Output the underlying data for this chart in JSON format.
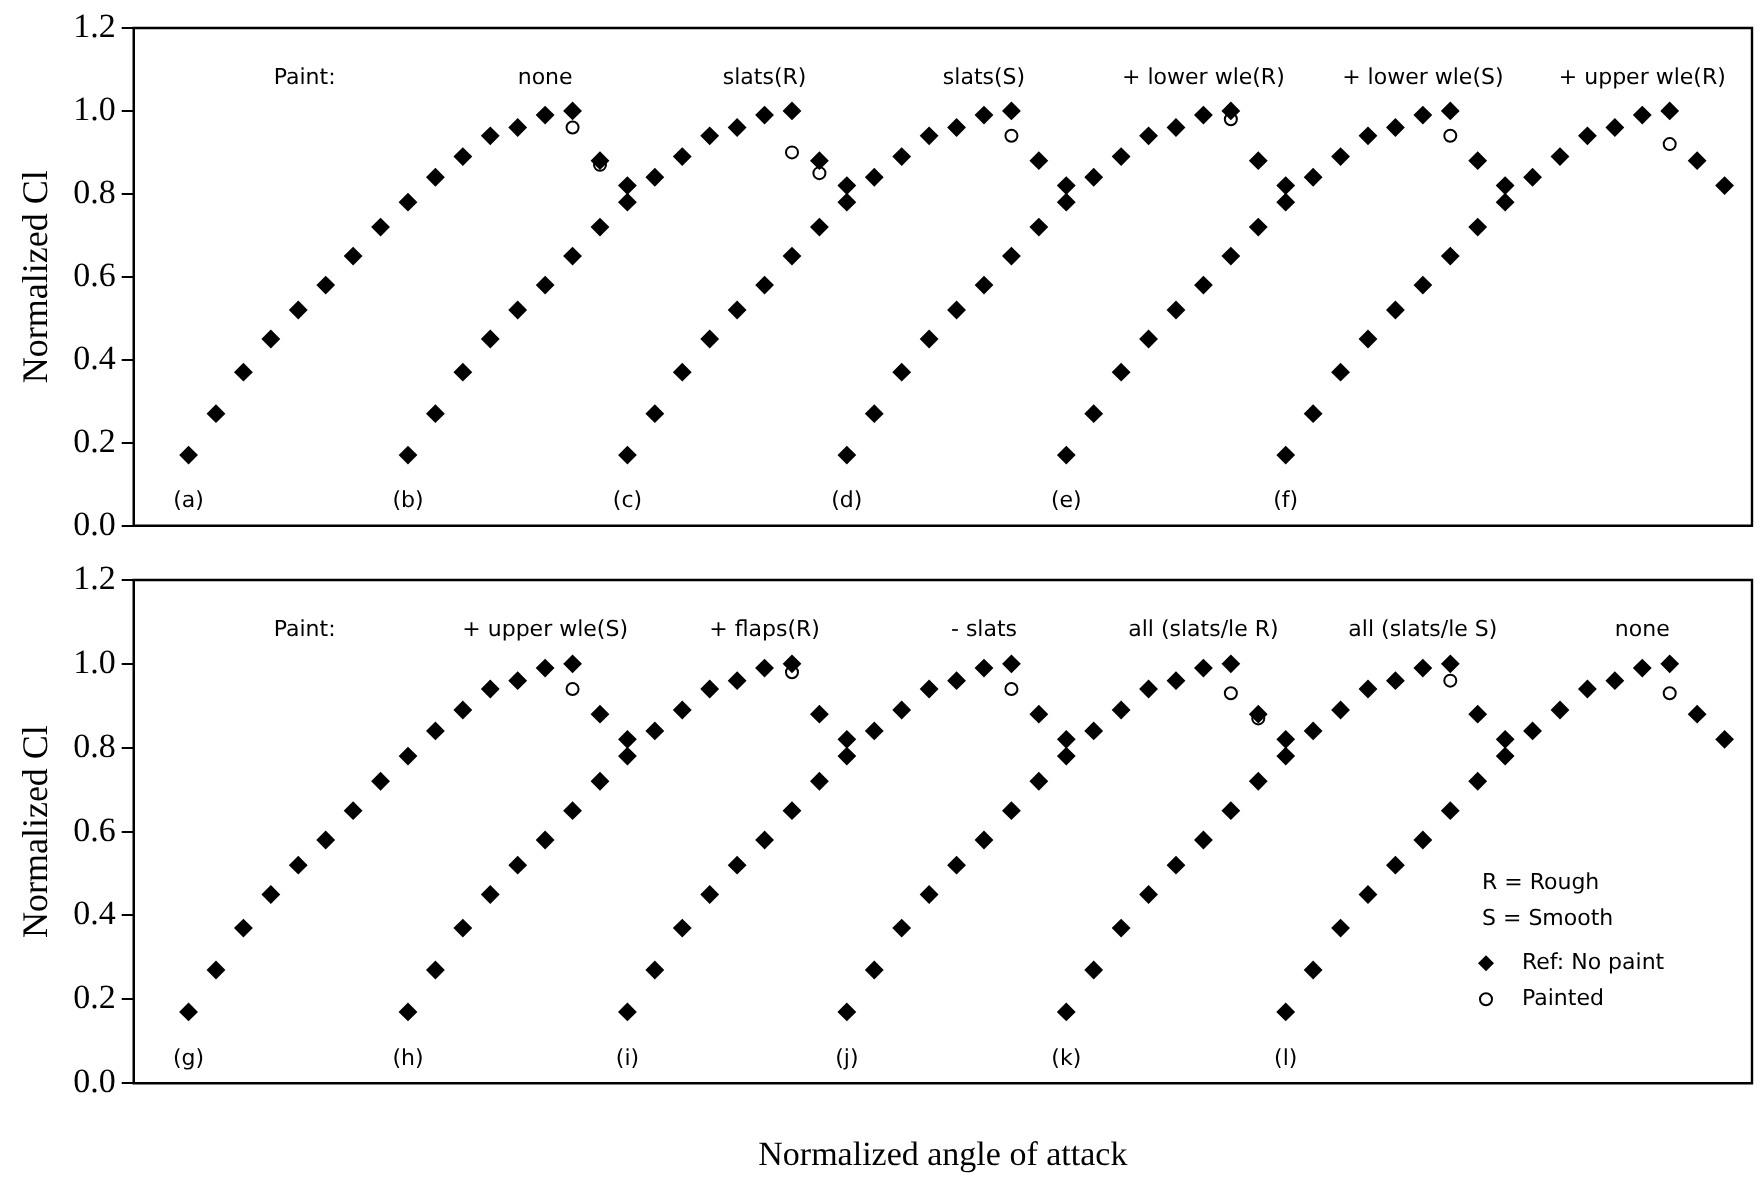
{
  "chart_data": [
    {
      "type": "scatter",
      "ylabel": "Normalized Cl",
      "ylim": [
        0,
        1.2
      ],
      "yticks": [
        {
          "value": 0,
          "label": "0.0"
        },
        {
          "value": 0.2,
          "label": "0.2"
        },
        {
          "value": 0.4,
          "label": "0.4"
        },
        {
          "value": 0.6,
          "label": "0.6"
        },
        {
          "value": 0.8,
          "label": "0.8"
        },
        {
          "value": 1,
          "label": "1.0"
        },
        {
          "value": 1.2,
          "label": "1.2"
        }
      ],
      "grid": false,
      "legend": false,
      "tick_labels": "y",
      "annotations": [
        "Paint:",
        "none",
        "slats(R)",
        "slats(S)",
        "+ lower wle(R)",
        "+ lower wle(S)",
        "+ upper wle(R)",
        "(a)",
        "(b)",
        "(c)",
        "(d)",
        "(e)",
        "(f)"
      ],
      "categories": [
        null,
        null,
        null,
        null,
        null,
        null,
        null,
        null,
        null,
        null,
        null,
        null,
        null,
        null,
        null,
        null,
        null,
        null,
        null,
        null,
        null,
        null,
        null,
        null,
        null,
        null,
        null,
        null,
        null,
        null,
        null,
        null,
        null,
        null,
        null,
        null,
        null,
        null,
        null,
        null,
        null,
        null,
        null,
        null,
        null,
        null,
        null,
        null,
        null,
        null,
        null,
        null,
        null,
        null,
        null,
        null,
        null,
        null,
        null,
        null
      ],
      "series": [
        {
          "color": "#000000",
          "marker": "diamond",
          "values": [
            null,
            null,
            0.17,
            0.27,
            0.37,
            0.45,
            0.52,
            0.58,
            0.65,
            0.72,
            0.78,
            0.84,
            0.89,
            0.94,
            0.96,
            0.99,
            1.0,
            0.88,
            0.82,
            null,
            null,
            null,
            null,
            null,
            null,
            null,
            null,
            null,
            null,
            null,
            null,
            null,
            null,
            null,
            null,
            null,
            null,
            null,
            null,
            null,
            null,
            null,
            null,
            null,
            null,
            null,
            null,
            null,
            null,
            null,
            null,
            null,
            null,
            null,
            null,
            null,
            null,
            null,
            null,
            null
          ]
        },
        {
          "color": "#000000",
          "marker": "circle",
          "values": [
            null,
            null,
            null,
            null,
            null,
            null,
            null,
            null,
            null,
            null,
            null,
            null,
            null,
            null,
            null,
            null,
            0.96,
            0.87,
            null,
            null,
            null,
            null,
            null,
            null,
            null,
            null,
            null,
            null,
            null,
            null,
            null,
            null,
            null,
            null,
            null,
            null,
            null,
            null,
            null,
            null,
            null,
            null,
            null,
            null,
            null,
            null,
            null,
            null,
            null,
            null,
            null,
            null,
            null,
            null,
            null,
            null,
            null,
            null,
            null,
            null
          ]
        },
        {
          "color": "#000000",
          "marker": "diamond",
          "values": [
            null,
            null,
            null,
            null,
            null,
            null,
            null,
            null,
            null,
            null,
            0.17,
            0.27,
            0.37,
            0.45,
            0.52,
            0.58,
            0.65,
            0.72,
            0.78,
            0.84,
            0.89,
            0.94,
            0.96,
            0.99,
            1.0,
            0.88,
            0.82,
            null,
            null,
            null,
            null,
            null,
            null,
            null,
            null,
            null,
            null,
            null,
            null,
            null,
            null,
            null,
            null,
            null,
            null,
            null,
            null,
            null,
            null,
            null,
            null,
            null,
            null,
            null,
            null,
            null,
            null,
            null,
            null,
            null
          ]
        },
        {
          "color": "#000000",
          "marker": "circle",
          "values": [
            null,
            null,
            null,
            null,
            null,
            null,
            null,
            null,
            null,
            null,
            null,
            null,
            null,
            null,
            null,
            null,
            null,
            null,
            null,
            null,
            null,
            null,
            null,
            null,
            0.9,
            0.85,
            null,
            null,
            null,
            null,
            null,
            null,
            null,
            null,
            null,
            null,
            null,
            null,
            null,
            null,
            null,
            null,
            null,
            null,
            null,
            null,
            null,
            null,
            null,
            null,
            null,
            null,
            null,
            null,
            null,
            null,
            null,
            null,
            null,
            null
          ]
        },
        {
          "color": "#000000",
          "marker": "diamond",
          "values": [
            null,
            null,
            null,
            null,
            null,
            null,
            null,
            null,
            null,
            null,
            null,
            null,
            null,
            null,
            null,
            null,
            null,
            null,
            0.17,
            0.27,
            0.37,
            0.45,
            0.52,
            0.58,
            0.65,
            0.72,
            0.78,
            0.84,
            0.89,
            0.94,
            0.96,
            0.99,
            1.0,
            0.88,
            0.82,
            null,
            null,
            null,
            null,
            null,
            null,
            null,
            null,
            null,
            null,
            null,
            null,
            null,
            null,
            null,
            null,
            null,
            null,
            null,
            null,
            null,
            null,
            null,
            null,
            null
          ]
        },
        {
          "color": "#000000",
          "marker": "circle",
          "values": [
            null,
            null,
            null,
            null,
            null,
            null,
            null,
            null,
            null,
            null,
            null,
            null,
            null,
            null,
            null,
            null,
            null,
            null,
            null,
            null,
            null,
            null,
            null,
            null,
            null,
            null,
            null,
            null,
            null,
            null,
            null,
            null,
            0.94,
            null,
            null,
            null,
            null,
            null,
            null,
            null,
            null,
            null,
            null,
            null,
            null,
            null,
            null,
            null,
            null,
            null,
            null,
            null,
            null,
            null,
            null,
            null,
            null,
            null,
            null,
            null
          ]
        },
        {
          "color": "#000000",
          "marker": "diamond",
          "values": [
            null,
            null,
            null,
            null,
            null,
            null,
            null,
            null,
            null,
            null,
            null,
            null,
            null,
            null,
            null,
            null,
            null,
            null,
            null,
            null,
            null,
            null,
            null,
            null,
            null,
            null,
            0.17,
            0.27,
            0.37,
            0.45,
            0.52,
            0.58,
            0.65,
            0.72,
            0.78,
            0.84,
            0.89,
            0.94,
            0.96,
            0.99,
            1.0,
            0.88,
            0.82,
            null,
            null,
            null,
            null,
            null,
            null,
            null,
            null,
            null,
            null,
            null,
            null,
            null,
            null,
            null,
            null,
            null
          ]
        },
        {
          "color": "#000000",
          "marker": "circle",
          "values": [
            null,
            null,
            null,
            null,
            null,
            null,
            null,
            null,
            null,
            null,
            null,
            null,
            null,
            null,
            null,
            null,
            null,
            null,
            null,
            null,
            null,
            null,
            null,
            null,
            null,
            null,
            null,
            null,
            null,
            null,
            null,
            null,
            null,
            null,
            null,
            null,
            null,
            null,
            null,
            null,
            0.98,
            null,
            null,
            null,
            null,
            null,
            null,
            null,
            null,
            null,
            null,
            null,
            null,
            null,
            null,
            null,
            null,
            null,
            null,
            null
          ]
        },
        {
          "color": "#000000",
          "marker": "diamond",
          "values": [
            null,
            null,
            null,
            null,
            null,
            null,
            null,
            null,
            null,
            null,
            null,
            null,
            null,
            null,
            null,
            null,
            null,
            null,
            null,
            null,
            null,
            null,
            null,
            null,
            null,
            null,
            null,
            null,
            null,
            null,
            null,
            null,
            null,
            null,
            0.17,
            0.27,
            0.37,
            0.45,
            0.52,
            0.58,
            0.65,
            0.72,
            0.78,
            0.84,
            0.89,
            0.94,
            0.96,
            0.99,
            1.0,
            0.88,
            0.82,
            null,
            null,
            null,
            null,
            null,
            null,
            null,
            null,
            null
          ]
        },
        {
          "color": "#000000",
          "marker": "circle",
          "values": [
            null,
            null,
            null,
            null,
            null,
            null,
            null,
            null,
            null,
            null,
            null,
            null,
            null,
            null,
            null,
            null,
            null,
            null,
            null,
            null,
            null,
            null,
            null,
            null,
            null,
            null,
            null,
            null,
            null,
            null,
            null,
            null,
            null,
            null,
            null,
            null,
            null,
            null,
            null,
            null,
            null,
            null,
            null,
            null,
            null,
            null,
            null,
            null,
            0.94,
            null,
            null,
            null,
            null,
            null,
            null,
            null,
            null,
            null,
            null,
            null
          ]
        },
        {
          "color": "#000000",
          "marker": "diamond",
          "values": [
            null,
            null,
            null,
            null,
            null,
            null,
            null,
            null,
            null,
            null,
            null,
            null,
            null,
            null,
            null,
            null,
            null,
            null,
            null,
            null,
            null,
            null,
            null,
            null,
            null,
            null,
            null,
            null,
            null,
            null,
            null,
            null,
            null,
            null,
            null,
            null,
            null,
            null,
            null,
            null,
            null,
            null,
            0.17,
            0.27,
            0.37,
            0.45,
            0.52,
            0.58,
            0.65,
            0.72,
            0.78,
            0.84,
            0.89,
            0.94,
            0.96,
            0.99,
            1.0,
            0.88,
            0.82,
            null
          ]
        },
        {
          "color": "#000000",
          "marker": "circle",
          "values": [
            null,
            null,
            null,
            null,
            null,
            null,
            null,
            null,
            null,
            null,
            null,
            null,
            null,
            null,
            null,
            null,
            null,
            null,
            null,
            null,
            null,
            null,
            null,
            null,
            null,
            null,
            null,
            null,
            null,
            null,
            null,
            null,
            null,
            null,
            null,
            null,
            null,
            null,
            null,
            null,
            null,
            null,
            null,
            null,
            null,
            null,
            null,
            null,
            null,
            null,
            null,
            null,
            null,
            null,
            null,
            null,
            0.92,
            null,
            null,
            null
          ]
        }
      ]
    },
    {
      "type": "scatter",
      "xlabel": "Normalized angle of attack",
      "ylabel": "Normalized Cl",
      "ylim": [
        0,
        1.2
      ],
      "yticks": [
        {
          "value": 0,
          "label": "0.0"
        },
        {
          "value": 0.2,
          "label": "0.2"
        },
        {
          "value": 0.4,
          "label": "0.4"
        },
        {
          "value": 0.6,
          "label": "0.6"
        },
        {
          "value": 0.8,
          "label": "0.8"
        },
        {
          "value": 1,
          "label": "1.0"
        },
        {
          "value": 1.2,
          "label": "1.2"
        }
      ],
      "grid": false,
      "legend": "bottom right",
      "tick_labels": "y",
      "annotations": [
        "Paint:",
        "+ upper wle(S)",
        "+ flaps(R)",
        "- slats",
        "all (slats/le R)",
        "all (slats/le S)",
        "none",
        "(g)",
        "(h)",
        "(i)",
        "(j)",
        "(k)",
        "(l)",
        "R = Rough",
        "S = Smooth"
      ],
      "categories": [
        null,
        null,
        null,
        null,
        null,
        null,
        null,
        null,
        null,
        null,
        null,
        null,
        null,
        null,
        null,
        null,
        null,
        null,
        null,
        null,
        null,
        null,
        null,
        null,
        null,
        null,
        null,
        null,
        null,
        null,
        null,
        null,
        null,
        null,
        null,
        null,
        null,
        null,
        null,
        null,
        null,
        null,
        null,
        null,
        null,
        null,
        null,
        null,
        null,
        null,
        null,
        null,
        null,
        null,
        null,
        null,
        null,
        null,
        null,
        null
      ],
      "series": [
        {
          "name": "Ref: No paint",
          "color": "#000000",
          "marker": "diamond",
          "values": [
            null,
            null,
            0.17,
            0.27,
            0.37,
            0.45,
            0.52,
            0.58,
            0.65,
            0.72,
            0.78,
            0.84,
            0.89,
            0.94,
            0.96,
            0.99,
            1.0,
            0.88,
            0.82,
            null,
            null,
            null,
            null,
            null,
            null,
            null,
            null,
            null,
            null,
            null,
            null,
            null,
            null,
            null,
            null,
            null,
            null,
            null,
            null,
            null,
            null,
            null,
            null,
            null,
            null,
            null,
            null,
            null,
            null,
            null,
            null,
            null,
            null,
            null,
            null,
            null,
            null,
            null,
            null,
            null
          ]
        },
        {
          "name": "Painted",
          "color": "#000000",
          "marker": "circle",
          "values": [
            null,
            null,
            null,
            null,
            null,
            null,
            null,
            null,
            null,
            null,
            null,
            null,
            null,
            null,
            null,
            null,
            0.94,
            null,
            null,
            null,
            null,
            null,
            null,
            null,
            null,
            null,
            null,
            null,
            null,
            null,
            null,
            null,
            null,
            null,
            null,
            null,
            null,
            null,
            null,
            null,
            null,
            null,
            null,
            null,
            null,
            null,
            null,
            null,
            null,
            null,
            null,
            null,
            null,
            null,
            null,
            null,
            null,
            null,
            null,
            null
          ]
        },
        {
          "color": "#000000",
          "marker": "diamond",
          "values": [
            null,
            null,
            null,
            null,
            null,
            null,
            null,
            null,
            null,
            null,
            0.17,
            0.27,
            0.37,
            0.45,
            0.52,
            0.58,
            0.65,
            0.72,
            0.78,
            0.84,
            0.89,
            0.94,
            0.96,
            0.99,
            1.0,
            0.88,
            0.82,
            null,
            null,
            null,
            null,
            null,
            null,
            null,
            null,
            null,
            null,
            null,
            null,
            null,
            null,
            null,
            null,
            null,
            null,
            null,
            null,
            null,
            null,
            null,
            null,
            null,
            null,
            null,
            null,
            null,
            null,
            null,
            null,
            null
          ]
        },
        {
          "color": "#000000",
          "marker": "circle",
          "values": [
            null,
            null,
            null,
            null,
            null,
            null,
            null,
            null,
            null,
            null,
            null,
            null,
            null,
            null,
            null,
            null,
            null,
            null,
            null,
            null,
            null,
            null,
            null,
            null,
            0.98,
            null,
            null,
            null,
            null,
            null,
            null,
            null,
            null,
            null,
            null,
            null,
            null,
            null,
            null,
            null,
            null,
            null,
            null,
            null,
            null,
            null,
            null,
            null,
            null,
            null,
            null,
            null,
            null,
            null,
            null,
            null,
            null,
            null,
            null,
            null
          ]
        },
        {
          "color": "#000000",
          "marker": "diamond",
          "values": [
            null,
            null,
            null,
            null,
            null,
            null,
            null,
            null,
            null,
            null,
            null,
            null,
            null,
            null,
            null,
            null,
            null,
            null,
            0.17,
            0.27,
            0.37,
            0.45,
            0.52,
            0.58,
            0.65,
            0.72,
            0.78,
            0.84,
            0.89,
            0.94,
            0.96,
            0.99,
            1.0,
            0.88,
            0.82,
            null,
            null,
            null,
            null,
            null,
            null,
            null,
            null,
            null,
            null,
            null,
            null,
            null,
            null,
            null,
            null,
            null,
            null,
            null,
            null,
            null,
            null,
            null,
            null,
            null
          ]
        },
        {
          "color": "#000000",
          "marker": "circle",
          "values": [
            null,
            null,
            null,
            null,
            null,
            null,
            null,
            null,
            null,
            null,
            null,
            null,
            null,
            null,
            null,
            null,
            null,
            null,
            null,
            null,
            null,
            null,
            null,
            null,
            null,
            null,
            null,
            null,
            null,
            null,
            null,
            null,
            0.94,
            null,
            null,
            null,
            null,
            null,
            null,
            null,
            null,
            null,
            null,
            null,
            null,
            null,
            null,
            null,
            null,
            null,
            null,
            null,
            null,
            null,
            null,
            null,
            null,
            null,
            null,
            null
          ]
        },
        {
          "color": "#000000",
          "marker": "diamond",
          "values": [
            null,
            null,
            null,
            null,
            null,
            null,
            null,
            null,
            null,
            null,
            null,
            null,
            null,
            null,
            null,
            null,
            null,
            null,
            null,
            null,
            null,
            null,
            null,
            null,
            null,
            null,
            0.17,
            0.27,
            0.37,
            0.45,
            0.52,
            0.58,
            0.65,
            0.72,
            0.78,
            0.84,
            0.89,
            0.94,
            0.96,
            0.99,
            1.0,
            0.88,
            0.82,
            null,
            null,
            null,
            null,
            null,
            null,
            null,
            null,
            null,
            null,
            null,
            null,
            null,
            null,
            null,
            null,
            null
          ]
        },
        {
          "color": "#000000",
          "marker": "circle",
          "values": [
            null,
            null,
            null,
            null,
            null,
            null,
            null,
            null,
            null,
            null,
            null,
            null,
            null,
            null,
            null,
            null,
            null,
            null,
            null,
            null,
            null,
            null,
            null,
            null,
            null,
            null,
            null,
            null,
            null,
            null,
            null,
            null,
            null,
            null,
            null,
            null,
            null,
            null,
            null,
            null,
            0.93,
            0.87,
            null,
            null,
            null,
            null,
            null,
            null,
            null,
            null,
            null,
            null,
            null,
            null,
            null,
            null,
            null,
            null,
            null,
            null
          ]
        },
        {
          "color": "#000000",
          "marker": "diamond",
          "values": [
            null,
            null,
            null,
            null,
            null,
            null,
            null,
            null,
            null,
            null,
            null,
            null,
            null,
            null,
            null,
            null,
            null,
            null,
            null,
            null,
            null,
            null,
            null,
            null,
            null,
            null,
            null,
            null,
            null,
            null,
            null,
            null,
            null,
            null,
            0.17,
            0.27,
            0.37,
            0.45,
            0.52,
            0.58,
            0.65,
            0.72,
            0.78,
            0.84,
            0.89,
            0.94,
            0.96,
            0.99,
            1.0,
            0.88,
            0.82,
            null,
            null,
            null,
            null,
            null,
            null,
            null,
            null,
            null
          ]
        },
        {
          "color": "#000000",
          "marker": "circle",
          "values": [
            null,
            null,
            null,
            null,
            null,
            null,
            null,
            null,
            null,
            null,
            null,
            null,
            null,
            null,
            null,
            null,
            null,
            null,
            null,
            null,
            null,
            null,
            null,
            null,
            null,
            null,
            null,
            null,
            null,
            null,
            null,
            null,
            null,
            null,
            null,
            null,
            null,
            null,
            null,
            null,
            null,
            null,
            null,
            null,
            null,
            null,
            null,
            null,
            0.96,
            null,
            null,
            null,
            null,
            null,
            null,
            null,
            null,
            null,
            null,
            null
          ]
        },
        {
          "color": "#000000",
          "marker": "diamond",
          "values": [
            null,
            null,
            null,
            null,
            null,
            null,
            null,
            null,
            null,
            null,
            null,
            null,
            null,
            null,
            null,
            null,
            null,
            null,
            null,
            null,
            null,
            null,
            null,
            null,
            null,
            null,
            null,
            null,
            null,
            null,
            null,
            null,
            null,
            null,
            null,
            null,
            null,
            null,
            null,
            null,
            null,
            null,
            0.17,
            0.27,
            0.37,
            0.45,
            0.52,
            0.58,
            0.65,
            0.72,
            0.78,
            0.84,
            0.89,
            0.94,
            0.96,
            0.99,
            1.0,
            0.88,
            0.82,
            null
          ]
        },
        {
          "color": "#000000",
          "marker": "circle",
          "values": [
            null,
            null,
            null,
            null,
            null,
            null,
            null,
            null,
            null,
            null,
            null,
            null,
            null,
            null,
            null,
            null,
            null,
            null,
            null,
            null,
            null,
            null,
            null,
            null,
            null,
            null,
            null,
            null,
            null,
            null,
            null,
            null,
            null,
            null,
            null,
            null,
            null,
            null,
            null,
            null,
            null,
            null,
            null,
            null,
            null,
            null,
            null,
            null,
            null,
            null,
            null,
            null,
            null,
            null,
            null,
            null,
            0.93,
            null,
            null,
            null
          ]
        }
      ]
    }
  ]
}
